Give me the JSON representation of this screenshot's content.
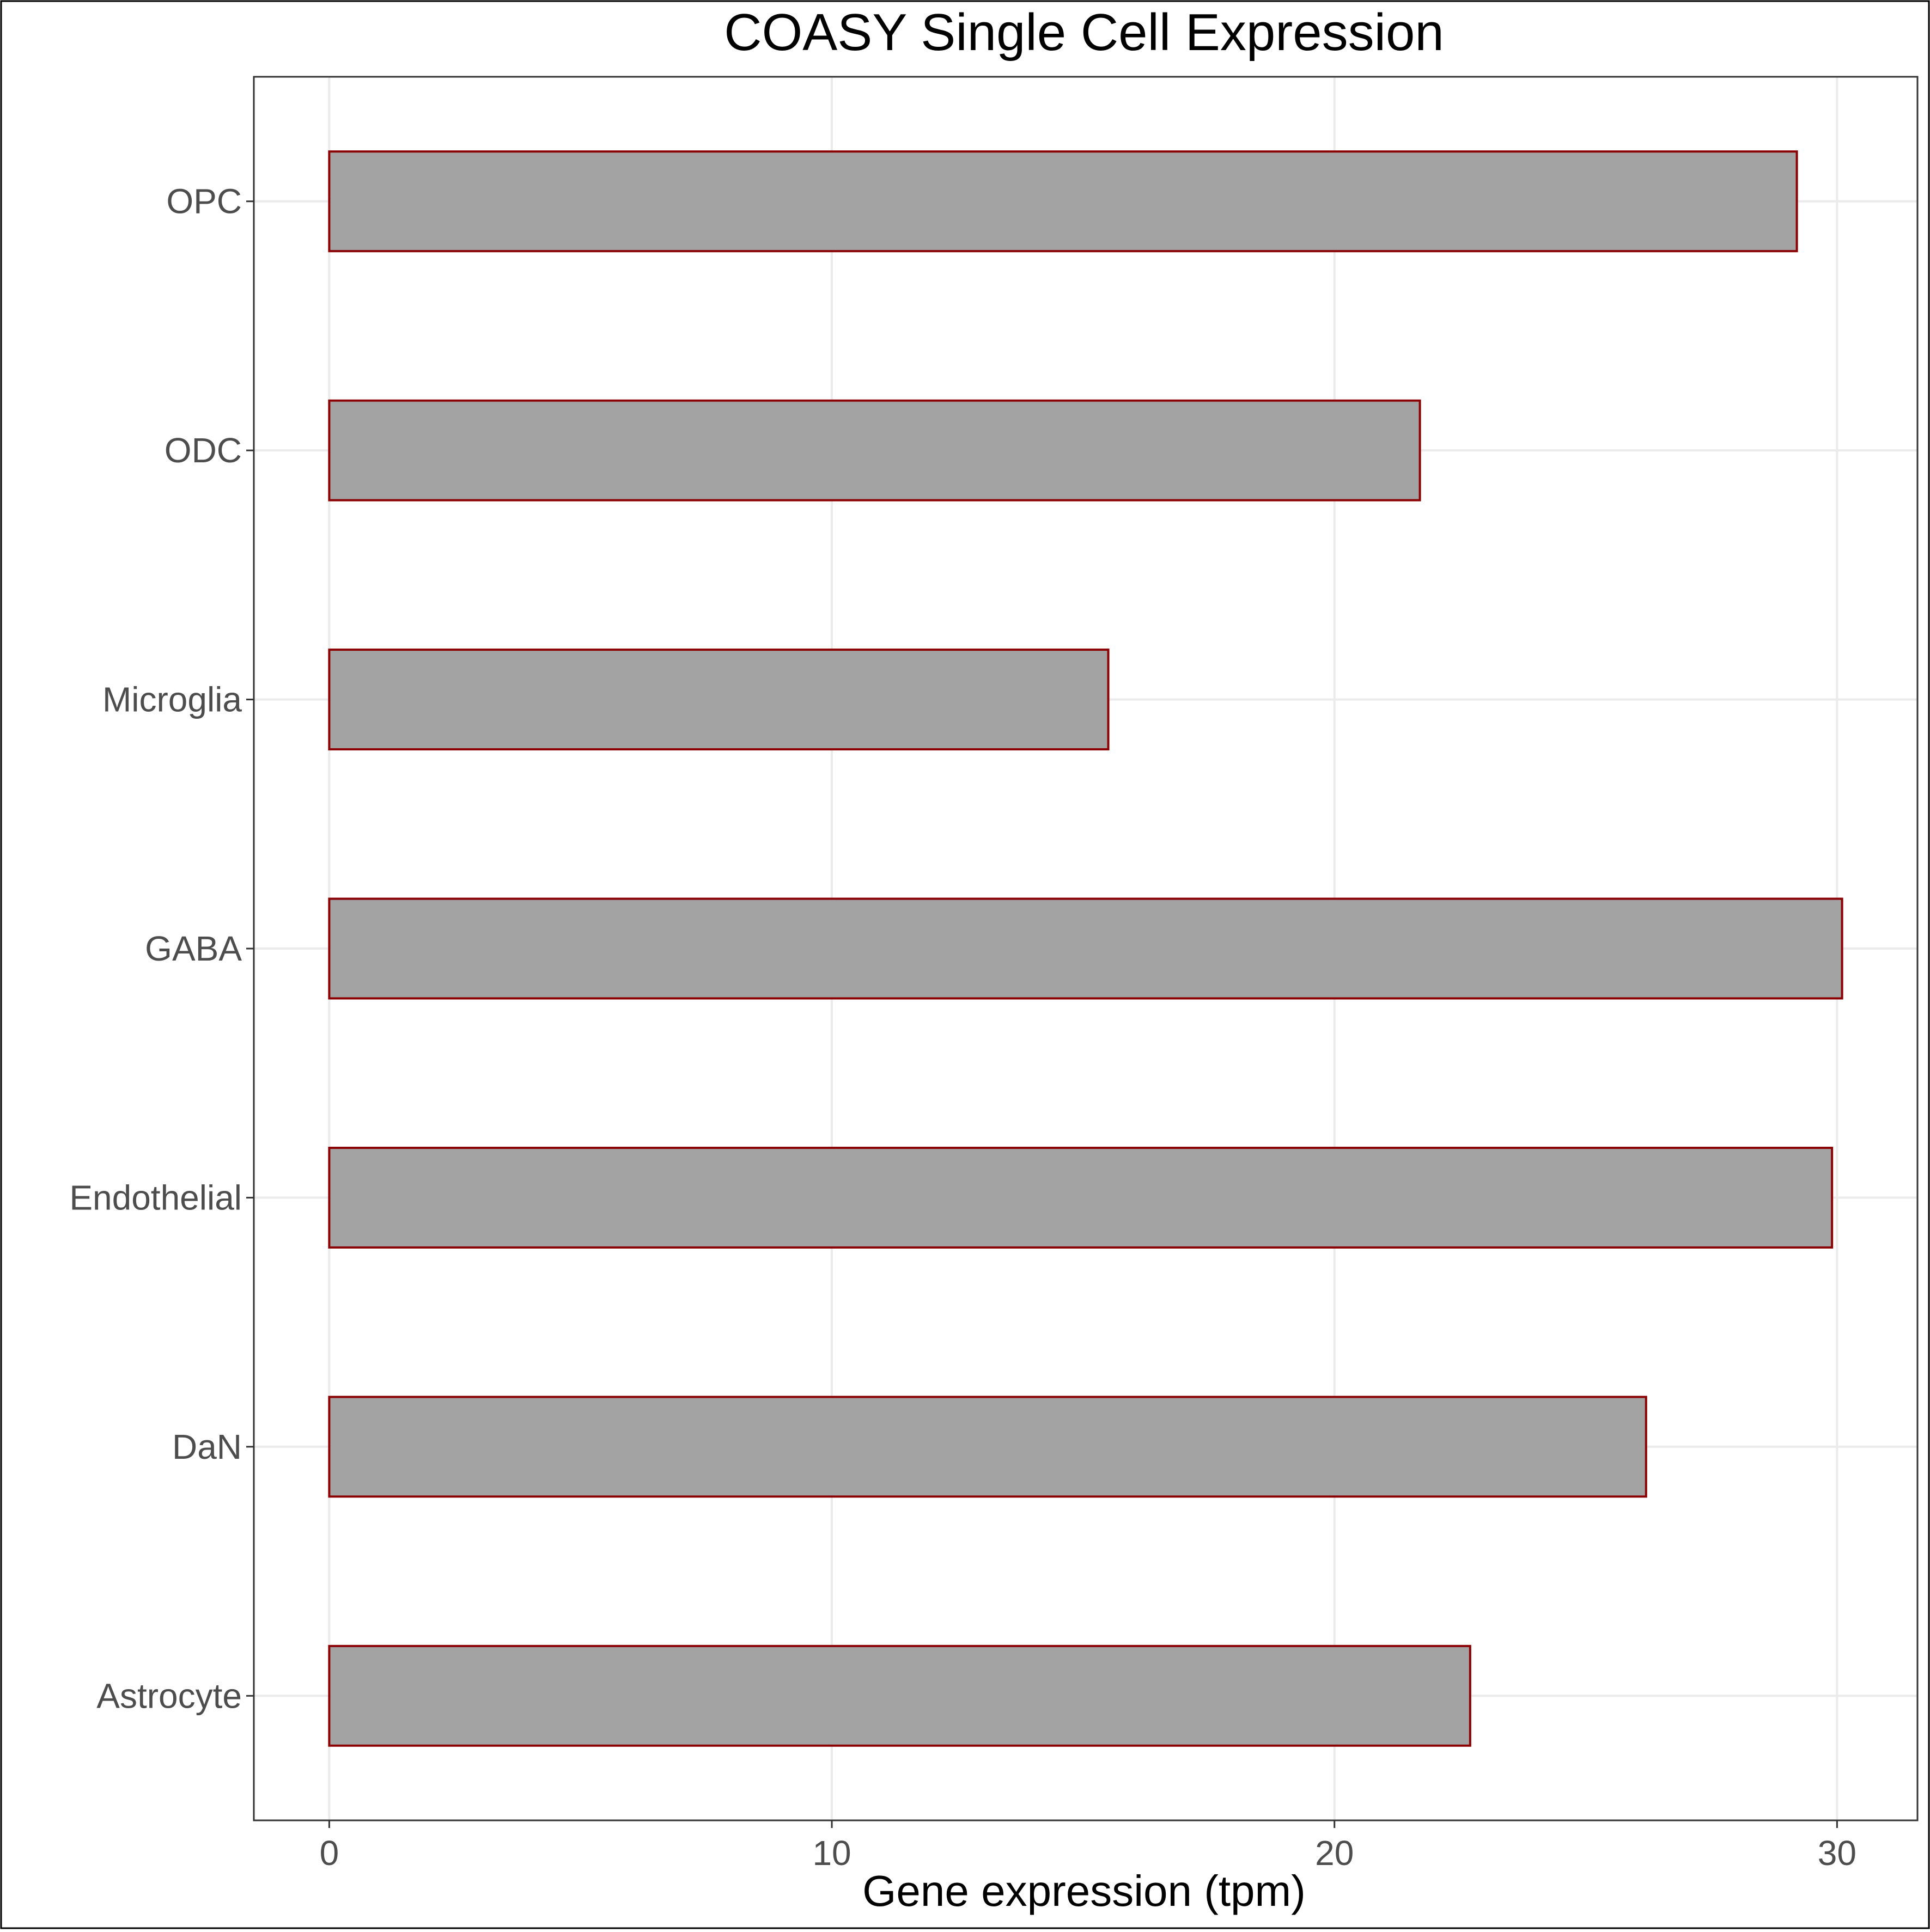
{
  "chart_data": {
    "type": "bar",
    "orientation": "horizontal",
    "title": "COASY Single Cell Expression",
    "xlabel": "Gene expression (tpm)",
    "ylabel": "",
    "categories": [
      "Astrocyte",
      "DaN",
      "Endothelial",
      "GABA",
      "Microglia",
      "ODC",
      "OPC"
    ],
    "values": [
      22.7,
      26.2,
      29.9,
      30.1,
      15.5,
      21.7,
      29.2
    ],
    "xlim": [
      -1.5,
      31.6
    ],
    "xticks": [
      0,
      10,
      20,
      30
    ],
    "xtick_labels": [
      "0",
      "10",
      "20",
      "30"
    ],
    "grid": true,
    "colors": {
      "bar_fill": "#a3a3a3",
      "bar_outline": "#8b0000",
      "grid": "#ebebeb"
    }
  }
}
